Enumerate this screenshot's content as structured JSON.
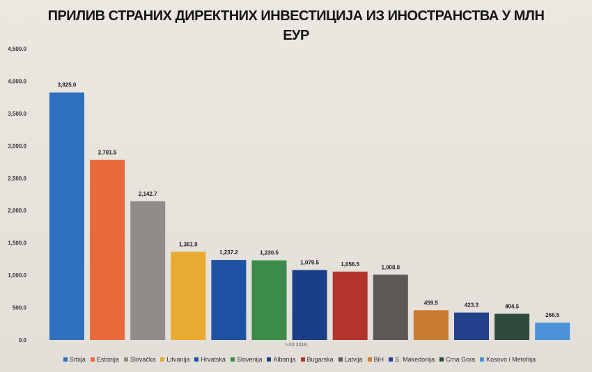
{
  "chart_data": {
    "type": "bar",
    "title": "ПРИЛИВ СТРАНИХ ДИРЕКТНИХ ИНВЕСТИЦИЈА ИЗ ИНОСТРАНСТВА У МЛН ЕУР",
    "title_line1": "ПРИЛИВ СТРАНИХ ДИРЕКТНИХ ИНВЕСТИЦИЈА ИЗ ИНОСТРАНСТВА У МЛН",
    "title_line2": "ЕУР",
    "subtitle": "I-XII 2019.",
    "categories": [
      "Srbija",
      "Estonija",
      "Slovačka",
      "Litvanija",
      "Hrvatska",
      "Slovenija",
      "Albanija",
      "Bugarska",
      "Latvija",
      "BiH",
      "S. Makedonija",
      "Crna Gora",
      "Kosovo i Metohija"
    ],
    "values": [
      3825.0,
      2781.5,
      2142.7,
      1361.9,
      1237.2,
      1230.5,
      1079.5,
      1056.5,
      1008.0,
      459.5,
      423.3,
      404.5,
      266.5
    ],
    "value_labels": [
      "3,825.0",
      "2,781.5",
      "2,142.7",
      "1,361.9",
      "1,237.2",
      "1,230.5",
      "1,079.5",
      "1,056.5",
      "1,008.0",
      "459.5",
      "423.3",
      "404.5",
      "266.5"
    ],
    "colors": [
      "#2f6fc0",
      "#e8693c",
      "#928c89",
      "#e8aa30",
      "#1f52a3",
      "#3b8b4b",
      "#1b3f86",
      "#b2342d",
      "#5d5755",
      "#c97b32",
      "#23428b",
      "#2f4b3c",
      "#4a91da"
    ],
    "ylim": [
      0,
      4500
    ],
    "yticks": [
      "0.0",
      "500.0",
      "1,000.0",
      "1,500.0",
      "2,000.0",
      "2,500.0",
      "3,000.0",
      "3,500.0",
      "4,000.0",
      "4,500.0"
    ],
    "grid": false,
    "legend_position": "bottom"
  }
}
